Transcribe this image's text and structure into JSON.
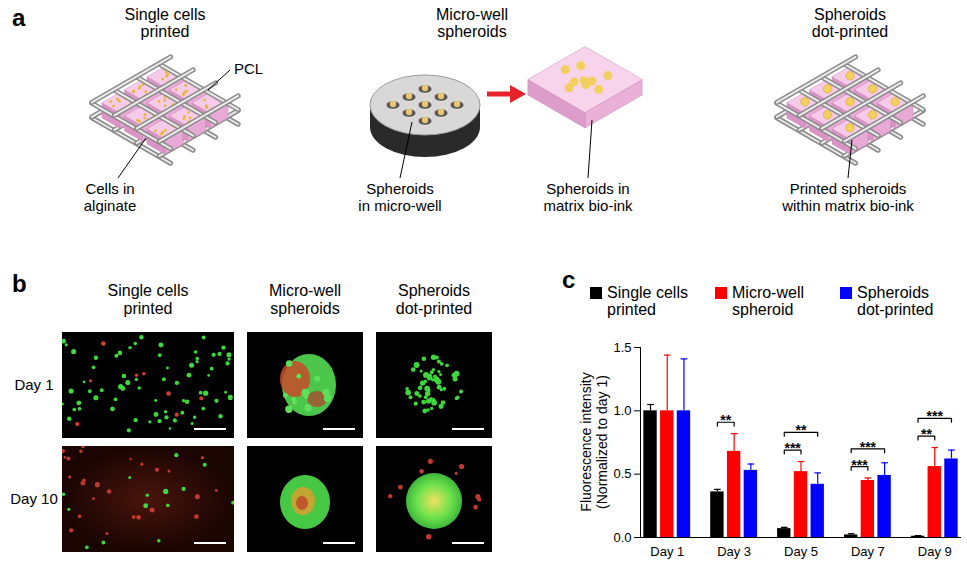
{
  "panel_a": {
    "panel_label": "a",
    "single_cells": {
      "title": "Single cells\nprinted",
      "pcl": "PCL",
      "cells": "Cells in\nalginate"
    },
    "micro_well": {
      "title": "Micro-well\nspheroids",
      "wells": "Spheroids\nin micro-well",
      "matrix": "Spheroids in\nmatrix bio-ink"
    },
    "dot_printed": {
      "title": "Spheroids\ndot-printed",
      "printed": "Printed spheroids\nwithin matrix bio-ink"
    }
  },
  "panel_b": {
    "panel_label": "b",
    "columns": [
      "Single cells\nprinted",
      "Micro-well\nspheroids",
      "Spheroids\ndot-printed"
    ],
    "rows": [
      "Day 1",
      "Day 10"
    ]
  },
  "chart_data": {
    "type": "bar",
    "panel_label": "c",
    "categories": [
      "Day 1",
      "Day 3",
      "Day 5",
      "Day 7",
      "Day 9"
    ],
    "series": [
      {
        "name": "Single cells printed",
        "color": "#000000",
        "values": [
          1.0,
          0.36,
          0.07,
          0.02,
          0.01
        ],
        "errors": [
          0.05,
          0.02,
          0.01,
          0.01,
          0.005
        ]
      },
      {
        "name": "Micro-well spheroid",
        "color": "#ff0000",
        "values": [
          1.0,
          0.68,
          0.52,
          0.45,
          0.56
        ],
        "errors": [
          0.44,
          0.14,
          0.08,
          0.02,
          0.15
        ]
      },
      {
        "name": "Spheroids dot-printed",
        "color": "#0000ff",
        "values": [
          1.0,
          0.53,
          0.42,
          0.49,
          0.62
        ],
        "errors": [
          0.41,
          0.05,
          0.09,
          0.1,
          0.07
        ]
      }
    ],
    "ylabel": [
      "Fluorescence  intensity",
      "(Normalized to day 1)"
    ],
    "ylim": [
      0,
      1.5
    ],
    "yticks": [
      {
        "value": 0,
        "label": "0.0"
      },
      {
        "value": 0.5,
        "label": "0.5"
      },
      {
        "value": 1,
        "label": "1.0"
      },
      {
        "value": 1.5,
        "label": "1.5"
      }
    ],
    "annotations": [
      {
        "category": "Day 3",
        "from": "Single cells printed",
        "to": "Micro-well spheroid",
        "text": "**"
      },
      {
        "category": "Day 5",
        "from": "Single cells printed",
        "to": "Micro-well spheroid",
        "text": "***"
      },
      {
        "category": "Day 5",
        "from": "Single cells printed",
        "to": "Spheroids dot-printed",
        "text": "**"
      },
      {
        "category": "Day 7",
        "from": "Single cells printed",
        "to": "Micro-well spheroid",
        "text": "***"
      },
      {
        "category": "Day 7",
        "from": "Single cells printed",
        "to": "Spheroids dot-printed",
        "text": "***"
      },
      {
        "category": "Day 9",
        "from": "Single cells printed",
        "to": "Micro-well spheroid",
        "text": "**"
      },
      {
        "category": "Day 9",
        "from": "Single cells printed",
        "to": "Spheroids dot-printed",
        "text": "***"
      }
    ],
    "legend": "top",
    "grid": false
  }
}
